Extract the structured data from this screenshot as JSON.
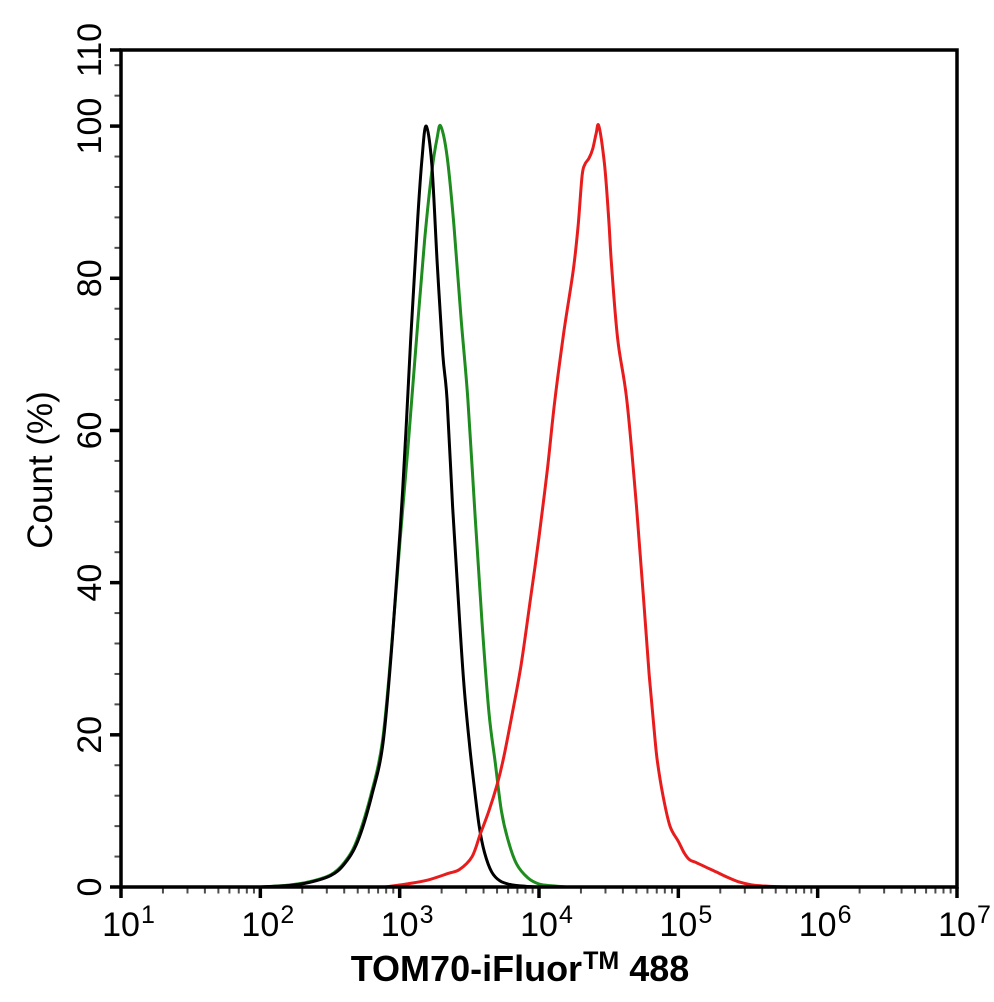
{
  "chart_data": {
    "type": "line",
    "title": "",
    "xlabel": "TOM70-iFluor™ 488",
    "xlabel_parts": {
      "pre": "TOM70-iFluor",
      "sup": "TM",
      "post": "488"
    },
    "ylabel": "Count  (%)",
    "x_scale": "log",
    "xlim": [
      10,
      10000000
    ],
    "ylim": [
      0,
      110
    ],
    "x_tick_base": "10",
    "x_major_ticks_exponents": [
      1,
      2,
      3,
      4,
      5,
      6,
      7
    ],
    "x_minor_subs": [
      2,
      3,
      4,
      5,
      6,
      7,
      8,
      9
    ],
    "y_major_ticks": [
      0,
      20,
      40,
      60,
      80,
      100,
      110
    ],
    "y_minor_step": 4,
    "grid": false,
    "legend": "none",
    "axis_color": "#000000",
    "minor_tick_color": "#4d4d4d",
    "series": [
      {
        "name": "green",
        "color": "#1e8c1e",
        "peak_x": 1950,
        "peak_y": 100,
        "points": [
          [
            100,
            0
          ],
          [
            160,
            0.25
          ],
          [
            225,
            0.7
          ],
          [
            320,
            1.6
          ],
          [
            400,
            3.2
          ],
          [
            490,
            6
          ],
          [
            620,
            12
          ],
          [
            750,
            19
          ],
          [
            870,
            31
          ],
          [
            1000,
            45
          ],
          [
            1150,
            58
          ],
          [
            1320,
            72
          ],
          [
            1510,
            85
          ],
          [
            1700,
            94
          ],
          [
            1860,
            98.5
          ],
          [
            1970,
            100
          ],
          [
            2190,
            96
          ],
          [
            2450,
            87
          ],
          [
            2750,
            75
          ],
          [
            3090,
            64
          ],
          [
            3470,
            49
          ],
          [
            3890,
            35
          ],
          [
            4370,
            23
          ],
          [
            4840,
            16.5
          ],
          [
            5370,
            10
          ],
          [
            6030,
            6
          ],
          [
            6920,
            3
          ],
          [
            8320,
            1.2
          ],
          [
            10000,
            0.4
          ],
          [
            12600,
            0.15
          ],
          [
            15850,
            0
          ]
        ]
      },
      {
        "name": "black",
        "color": "#000000",
        "peak_x": 1550,
        "peak_y": 100,
        "points": [
          [
            100,
            0
          ],
          [
            160,
            0.2
          ],
          [
            225,
            0.6
          ],
          [
            320,
            1.5
          ],
          [
            400,
            3
          ],
          [
            500,
            6
          ],
          [
            630,
            12
          ],
          [
            760,
            19
          ],
          [
            890,
            33
          ],
          [
            1050,
            52
          ],
          [
            1200,
            72
          ],
          [
            1350,
            88
          ],
          [
            1450,
            96
          ],
          [
            1550,
            100
          ],
          [
            1700,
            95
          ],
          [
            1860,
            82
          ],
          [
            2040,
            70
          ],
          [
            2190,
            64
          ],
          [
            2400,
            50
          ],
          [
            2630,
            38
          ],
          [
            2880,
            27
          ],
          [
            3160,
            19
          ],
          [
            3390,
            14
          ],
          [
            3720,
            8
          ],
          [
            4070,
            4.5
          ],
          [
            4570,
            2
          ],
          [
            5250,
            0.8
          ],
          [
            6310,
            0.3
          ],
          [
            7940,
            0.1
          ],
          [
            10000,
            0
          ]
        ]
      },
      {
        "name": "red",
        "color": "#e81c1c",
        "peak_x": 26900,
        "peak_y": 100,
        "points": [
          [
            790,
            0
          ],
          [
            1120,
            0.4
          ],
          [
            1580,
            0.9
          ],
          [
            2240,
            1.8
          ],
          [
            2690,
            2.3
          ],
          [
            3310,
            4
          ],
          [
            3800,
            7
          ],
          [
            4370,
            10
          ],
          [
            5010,
            13.5
          ],
          [
            5500,
            16.5
          ],
          [
            6310,
            22
          ],
          [
            7410,
            29
          ],
          [
            8710,
            38
          ],
          [
            10000,
            46
          ],
          [
            11500,
            55
          ],
          [
            13000,
            64
          ],
          [
            15100,
            73
          ],
          [
            17600,
            81
          ],
          [
            19100,
            87
          ],
          [
            20400,
            93.5
          ],
          [
            21400,
            95
          ],
          [
            22900,
            95.8
          ],
          [
            24300,
            97
          ],
          [
            25700,
            99
          ],
          [
            26900,
            100
          ],
          [
            29500,
            95
          ],
          [
            31600,
            88
          ],
          [
            33100,
            82
          ],
          [
            36700,
            72
          ],
          [
            42700,
            64
          ],
          [
            50100,
            50
          ],
          [
            56200,
            38
          ],
          [
            61700,
            28
          ],
          [
            67600,
            20
          ],
          [
            70800,
            16.5
          ],
          [
            77600,
            12
          ],
          [
            87100,
            8
          ],
          [
            100000,
            6
          ],
          [
            110000,
            4.5
          ],
          [
            120000,
            3.6
          ],
          [
            135000,
            3.2
          ],
          [
            158000,
            2.6
          ],
          [
            186000,
            2
          ],
          [
            224000,
            1.3
          ],
          [
            269000,
            0.7
          ],
          [
            331000,
            0.3
          ],
          [
            398000,
            0.15
          ],
          [
            501000,
            0.05
          ],
          [
            631000,
            0
          ]
        ]
      }
    ]
  }
}
